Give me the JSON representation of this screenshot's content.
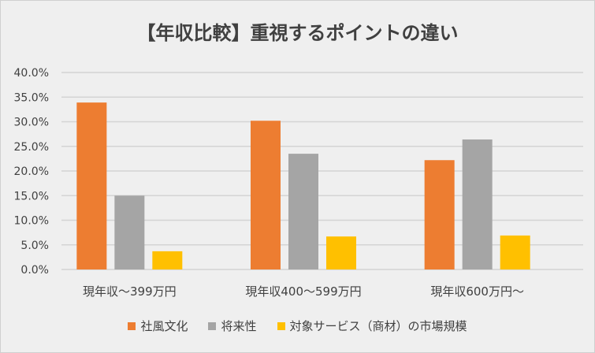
{
  "chart_data": {
    "type": "bar",
    "title": "【年収比較】重視するポイントの違い",
    "categories": [
      "現年収～399万円",
      "現年収400～599万円",
      "現年収600万円～"
    ],
    "series": [
      {
        "name": "社風文化",
        "color": "#ed7d31",
        "values": [
          33.9,
          30.2,
          22.2
        ]
      },
      {
        "name": "将来性",
        "color": "#a5a5a5",
        "values": [
          15.0,
          23.5,
          26.4
        ]
      },
      {
        "name": "対象サービス（商材）の市場規模",
        "color": "#ffc000",
        "values": [
          3.7,
          6.7,
          6.9
        ]
      }
    ],
    "ylim": [
      0,
      40
    ],
    "yticks": [
      "0.0%",
      "5.0%",
      "10.0%",
      "15.0%",
      "20.0%",
      "25.0%",
      "30.0%",
      "35.0%",
      "40.0%"
    ],
    "grid": true,
    "legend": "bottom",
    "xlabel": "",
    "ylabel": ""
  }
}
